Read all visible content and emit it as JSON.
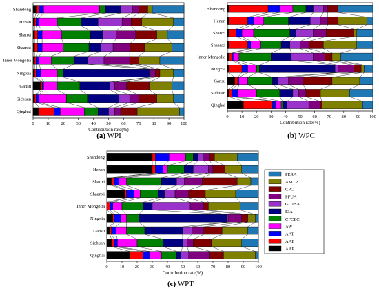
{
  "chart_data": [
    {
      "type": "bar",
      "stacked": true,
      "orientation": "horizontal",
      "caption": {
        "letter": "(a)",
        "title": "WPI"
      },
      "xlabel": "Contribution rate(%)",
      "xlim": [
        0,
        100
      ],
      "xticks": [
        0,
        10,
        20,
        30,
        40,
        50,
        60,
        70,
        80,
        90,
        100
      ],
      "categories": [
        "Shandong",
        "Henan",
        "Shanxi",
        "Shaanxi",
        "Inner Mongolia",
        "Ningxia",
        "Gansu",
        "Sichuan",
        "Qinghai"
      ],
      "series": [
        {
          "name": "AAP",
          "values": [
            2,
            1,
            1,
            1,
            1,
            1,
            5,
            1,
            4
          ]
        },
        {
          "name": "AAE",
          "values": [
            2,
            1,
            2,
            2,
            1,
            1,
            1,
            1,
            10
          ]
        },
        {
          "name": "AAT",
          "values": [
            3,
            2,
            3,
            3,
            2,
            3,
            1,
            2,
            4
          ]
        },
        {
          "name": "AW",
          "values": [
            37,
            12,
            13,
            14,
            8,
            11,
            9,
            18,
            16
          ]
        },
        {
          "name": "CFCEC",
          "values": [
            4,
            16,
            19,
            17,
            15,
            4,
            15,
            14,
            9
          ]
        },
        {
          "name": "EIA",
          "values": [
            10,
            11,
            8,
            8,
            9,
            57,
            20,
            21,
            7
          ]
        },
        {
          "name": "GCTSA",
          "values": [
            8,
            16,
            9,
            8,
            11,
            1,
            3,
            7,
            4
          ]
        },
        {
          "name": "PFUA",
          "values": [
            4,
            6,
            13,
            11,
            17,
            3,
            8,
            6,
            4
          ]
        },
        {
          "name": "CPC",
          "values": [
            6,
            7,
            14,
            10,
            6,
            3,
            15,
            12,
            11
          ]
        },
        {
          "name": "AMTP",
          "values": [
            3,
            21,
            7,
            18,
            14,
            9,
            15,
            11,
            28
          ]
        },
        {
          "name": "PERA",
          "values": [
            21,
            7,
            11,
            8,
            16,
            7,
            8,
            7,
            3
          ]
        }
      ]
    },
    {
      "type": "bar",
      "stacked": true,
      "orientation": "horizontal",
      "caption": {
        "letter": "(b)",
        "title": "WPC"
      },
      "xlabel": "Contribution rate(%)",
      "xlim": [
        0,
        100
      ],
      "xticks": [
        0,
        10,
        20,
        30,
        40,
        50,
        60,
        70,
        80,
        90,
        100
      ],
      "categories": [
        "Shandong",
        "Henan",
        "Shanxi",
        "Shaanxi",
        "Inner Mongolia",
        "Ningxia",
        "Gansu",
        "Sichuan",
        "Qinghai"
      ],
      "series": [
        {
          "name": "AAP",
          "values": [
            1,
            1,
            1,
            1,
            1,
            1,
            5,
            1,
            11
          ]
        },
        {
          "name": "AAE",
          "values": [
            27,
            13,
            5,
            13,
            2,
            9,
            2,
            2,
            20
          ]
        },
        {
          "name": "AAT",
          "values": [
            8,
            4,
            4,
            2,
            1,
            4,
            1,
            4,
            2
          ]
        },
        {
          "name": "AW",
          "values": [
            9,
            7,
            8,
            7,
            4,
            6,
            6,
            13,
            4
          ]
        },
        {
          "name": "CFCEC",
          "values": [
            9,
            17,
            25,
            14,
            22,
            2,
            17,
            16,
            1
          ]
        },
        {
          "name": "EIA",
          "values": [
            5,
            15,
            4,
            6,
            14,
            52,
            4,
            9,
            3
          ]
        },
        {
          "name": "GCTSA",
          "values": [
            7,
            7,
            12,
            7,
            15,
            2,
            7,
            4,
            15
          ]
        },
        {
          "name": "PFUA",
          "values": [
            3,
            5,
            9,
            6,
            8,
            11,
            10,
            5,
            8
          ]
        },
        {
          "name": "CPC",
          "values": [
            7,
            7,
            19,
            10,
            5,
            5,
            20,
            10,
            1
          ]
        },
        {
          "name": "AMTP",
          "values": [
            0,
            20,
            2,
            23,
            6,
            2,
            19,
            20,
            28
          ]
        },
        {
          "name": "PERA",
          "values": [
            24,
            4,
            11,
            11,
            22,
            6,
            9,
            16,
            7
          ]
        }
      ]
    },
    {
      "type": "bar",
      "stacked": true,
      "orientation": "horizontal",
      "caption": {
        "letter": "(c)",
        "title": "WPT"
      },
      "xlabel": "Contribution rate(%)",
      "xlim": [
        0,
        100
      ],
      "xticks": [
        0,
        10,
        20,
        30,
        40,
        50,
        60,
        70,
        80,
        90,
        100
      ],
      "categories": [
        "Shandong",
        "Henan",
        "Shanxi",
        "Shaanxi",
        "Inner Mongolia",
        "Ningxia",
        "Gansu",
        "Sichuan",
        "Qinghai"
      ],
      "legend": {
        "position": "right",
        "order": [
          "PERA",
          "AMTP",
          "CPC",
          "PFUA",
          "GCTSA",
          "EIA",
          "CFCEC",
          "AW",
          "AAT",
          "AAE",
          "AAP"
        ]
      },
      "series": [
        {
          "name": "AAP",
          "values": [
            30,
            30,
            3,
            12,
            0,
            4,
            2,
            3,
            15
          ]
        },
        {
          "name": "AAE",
          "values": [
            2,
            2,
            2,
            1,
            2,
            1,
            1,
            2,
            9
          ]
        },
        {
          "name": "AAT",
          "values": [
            9,
            5,
            3,
            5,
            2,
            4,
            3,
            2,
            4
          ]
        },
        {
          "name": "AW",
          "values": [
            11,
            3,
            5,
            4,
            6,
            4,
            7,
            13,
            8
          ]
        },
        {
          "name": "CFCEC",
          "values": [
            5,
            11,
            23,
            12,
            14,
            8,
            12,
            17,
            10
          ]
        },
        {
          "name": "EIA",
          "values": [
            3,
            6,
            10,
            4,
            6,
            58,
            25,
            13,
            3
          ]
        },
        {
          "name": "GCTSA",
          "values": [
            4,
            10,
            5,
            7,
            25,
            1,
            6,
            3,
            5
          ]
        },
        {
          "name": "PFUA",
          "values": [
            4,
            3,
            12,
            9,
            9,
            9,
            8,
            4,
            14
          ]
        },
        {
          "name": "CPC",
          "values": [
            3,
            8,
            23,
            11,
            3,
            4,
            12,
            12,
            9
          ]
        },
        {
          "name": "AMTP",
          "values": [
            15,
            11,
            9,
            20,
            21,
            5,
            17,
            20,
            21
          ]
        },
        {
          "name": "PERA",
          "values": [
            14,
            11,
            5,
            15,
            12,
            2,
            7,
            11,
            2
          ]
        }
      ]
    }
  ],
  "colors": {
    "AAP": "#000000",
    "AAE": "#ff0000",
    "AAT": "#0000ff",
    "AW": "#ff00ff",
    "CFCEC": "#008000",
    "EIA": "#000080",
    "GCTSA": "#9933cc",
    "PFUA": "#800080",
    "CPC": "#800000",
    "AMTP": "#808000",
    "PERA": "#1f77b4"
  }
}
